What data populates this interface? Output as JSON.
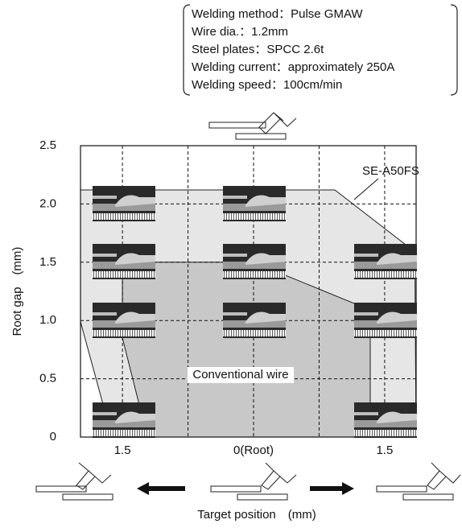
{
  "chart_data": {
    "type": "region",
    "conditions": [
      "Welding method：Pulse GMAW",
      "Wire dia.：1.2mm",
      "Steel plates：SPCC 2.6t",
      "Welding current：approximately 250A",
      "Welding speed：100cm/min"
    ],
    "x_label": "Target position　(mm)",
    "y_label": "Root gap　(mm)",
    "xlim": [
      -1.32,
      1.24
    ],
    "ylim": [
      0,
      2.5
    ],
    "xticks": [
      {
        "value": -1,
        "label": "1.5"
      },
      {
        "value": 0,
        "label": "0(Root)"
      },
      {
        "value": 1,
        "label": "1.5"
      }
    ],
    "xgrid": [
      -1,
      -0.5,
      0,
      0.5,
      1
    ],
    "yticks": [
      {
        "value": 0,
        "label": "0"
      },
      0.5,
      {
        "value": 1,
        "label": "1.0"
      },
      1.5,
      {
        "value": 2,
        "label": "2.0"
      },
      2.5
    ],
    "grid": true,
    "series": [
      {
        "name": "SE-A50FS",
        "color": "#e6e6e6",
        "x": [
          -1.32,
          0.62,
          1.23,
          1.24,
          -1.08,
          -1.32
        ],
        "y": [
          2.12,
          2.12,
          1.59,
          0,
          0,
          0.99
        ]
      },
      {
        "name": "Conventional wire",
        "color": "#c8c8c8",
        "x": [
          -1,
          0,
          0.89,
          0.89,
          -0.81,
          -1
        ],
        "y": [
          1.5,
          1.5,
          1.09,
          0,
          0,
          0.85
        ]
      }
    ]
  }
}
